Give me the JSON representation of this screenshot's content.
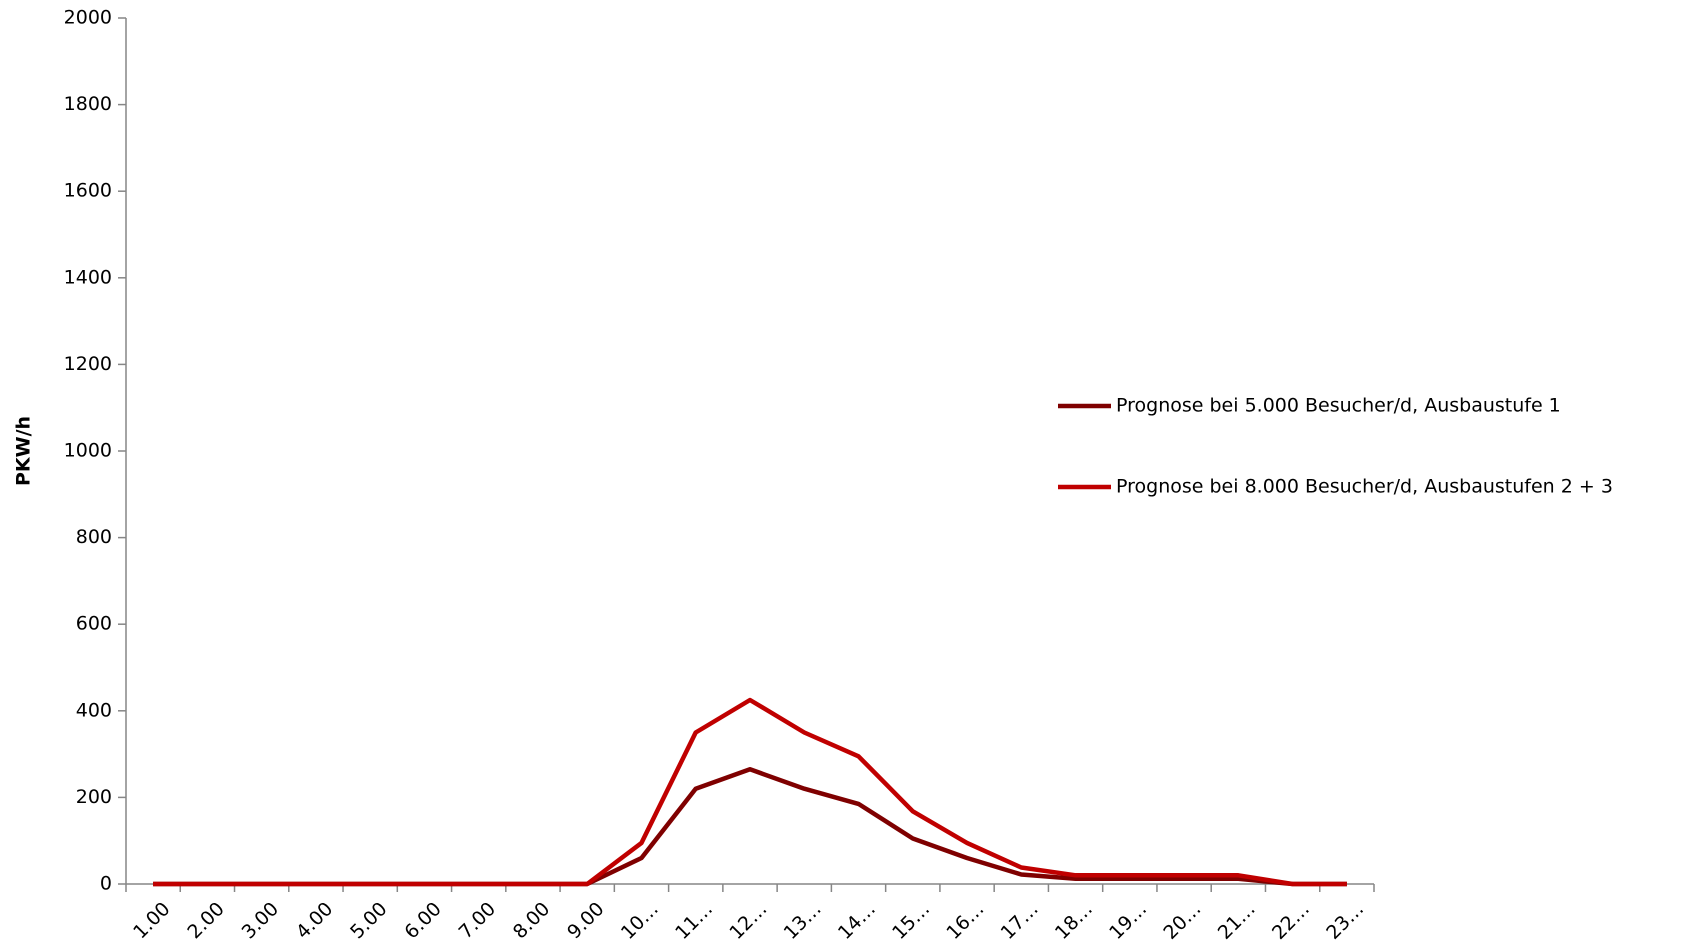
{
  "chart_data": {
    "type": "line",
    "y_label": "PKW/h",
    "categories": [
      "1.00",
      "2.00",
      "3.00",
      "4.00",
      "5.00",
      "6.00",
      "7.00",
      "8.00",
      "9.00",
      "10…",
      "11…",
      "12…",
      "13…",
      "14…",
      "15…",
      "16…",
      "17…",
      "18…",
      "19…",
      "20…",
      "21…",
      "22…",
      "23…"
    ],
    "series": [
      {
        "name": "Prognose bei 5.000 Besucher/d, Ausbaustufe 1",
        "color": "#7f0000",
        "values": [
          0,
          0,
          0,
          0,
          0,
          0,
          0,
          0,
          0,
          60,
          220,
          265,
          220,
          185,
          105,
          60,
          22,
          12,
          12,
          12,
          12,
          0,
          0
        ]
      },
      {
        "name": "Prognose bei 8.000 Besucher/d, Ausbaustufen 2 + 3",
        "color": "#c00000",
        "values": [
          0,
          0,
          0,
          0,
          0,
          0,
          0,
          0,
          0,
          95,
          350,
          425,
          350,
          295,
          168,
          95,
          38,
          20,
          20,
          20,
          20,
          0,
          0
        ]
      }
    ],
    "ylim": [
      0,
      2000
    ],
    "yticks": [
      0,
      200,
      400,
      600,
      800,
      1000,
      1200,
      1400,
      1600,
      1800,
      2000
    ],
    "grid": false
  }
}
